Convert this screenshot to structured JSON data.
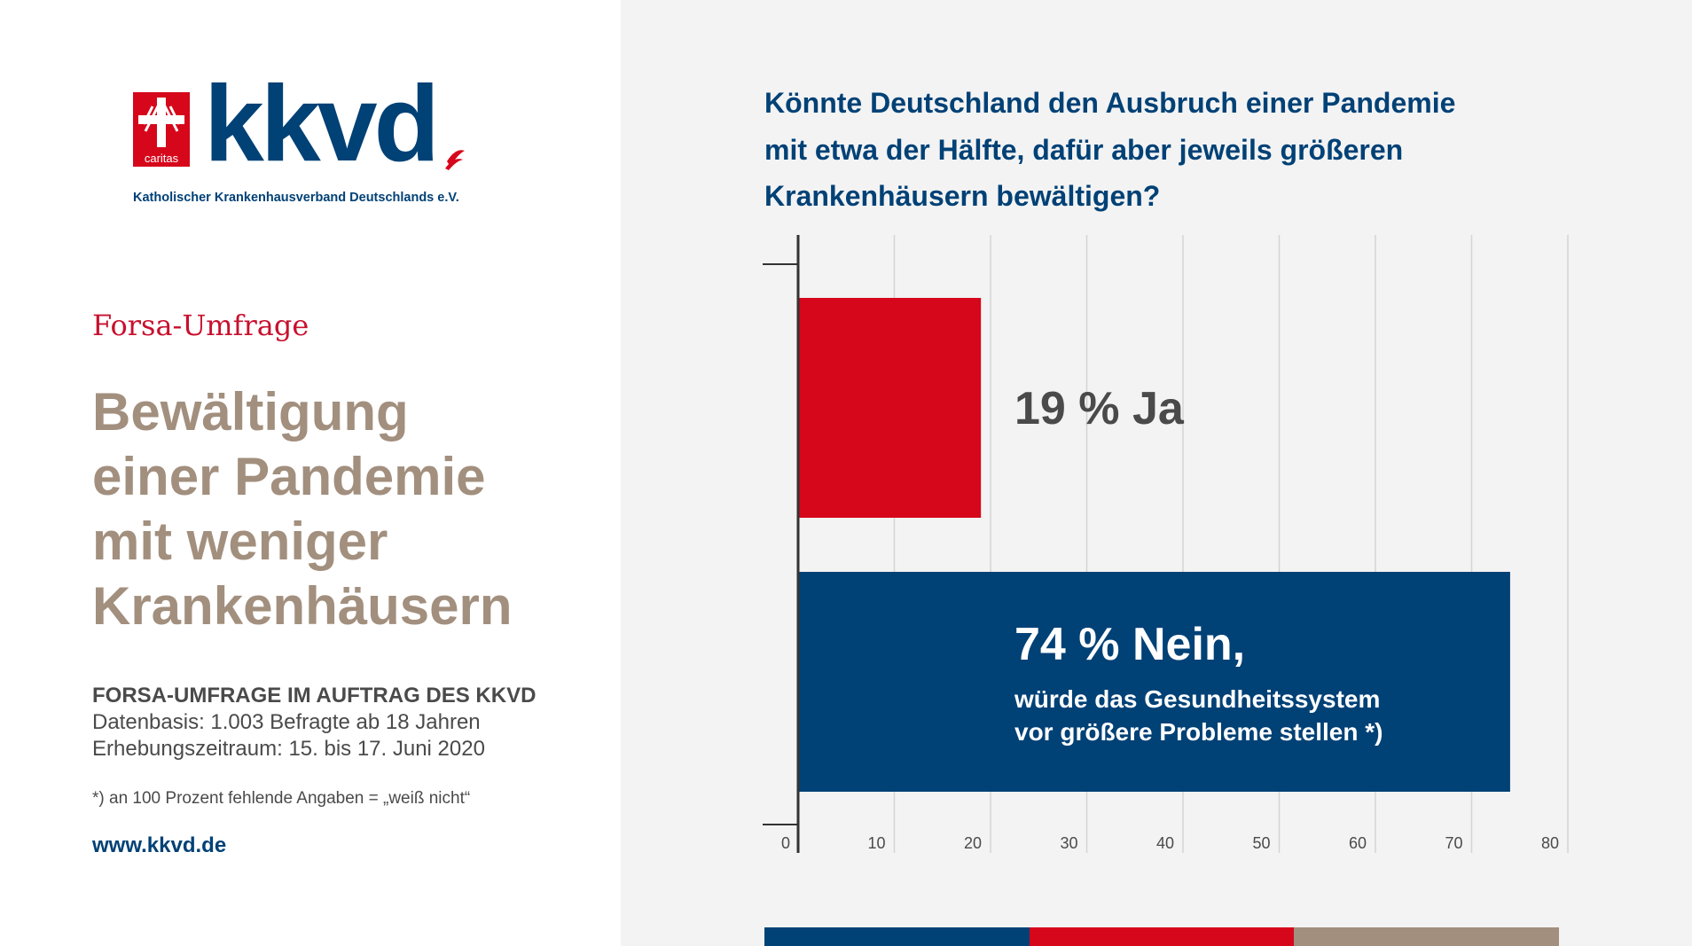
{
  "logo": {
    "caritas_word": "caritas",
    "brand": "kkvd",
    "subtitle": "Katholischer Krankenhausverband Deutschlands e.V."
  },
  "kicker": "Forsa-Umfrage",
  "title_lines": [
    "Bewältigung",
    "einer Pandemie",
    "mit weniger",
    "Krankenhäusern"
  ],
  "meta": {
    "heading": "FORSA-UMFRAGE IM AUFTRAG DES KKVD",
    "line1": "Datenbasis: 1.003 Befragte ab 18 Jahren",
    "line2": "Erhebungszeitraum: 15. bis 17. Juni 2020"
  },
  "footnote": "*) an 100 Prozent fehlende Angaben = „weiß nicht“",
  "website": "www.kkvd.de",
  "question_lines": [
    "Könnte Deutschland den Ausbruch einer Pandemie",
    "mit etwa der Hälfte, dafür aber jeweils größeren",
    "Krankenhäusern bewältigen?"
  ],
  "colors": {
    "brand_blue": "#004176",
    "brand_red": "#d6071b",
    "taupe": "#a28f7e"
  },
  "strip_colors": [
    "#004176",
    "#d6071b",
    "#a28f7e"
  ],
  "chart_data": {
    "type": "bar",
    "orientation": "horizontal",
    "categories": [
      "Ja",
      "Nein"
    ],
    "values": [
      19,
      74
    ],
    "colors": [
      "#d6071b",
      "#004176"
    ],
    "bar_labels": [
      "19 % Ja",
      "74 % Nein,"
    ],
    "bar_sublabels": [
      [],
      [
        "würde das Gesundheitssystem",
        "vor größere Probleme stellen *)"
      ]
    ],
    "xlim": [
      0,
      80
    ],
    "xticks": [
      0,
      10,
      20,
      30,
      40,
      50,
      60,
      70,
      80
    ],
    "grid": true
  }
}
